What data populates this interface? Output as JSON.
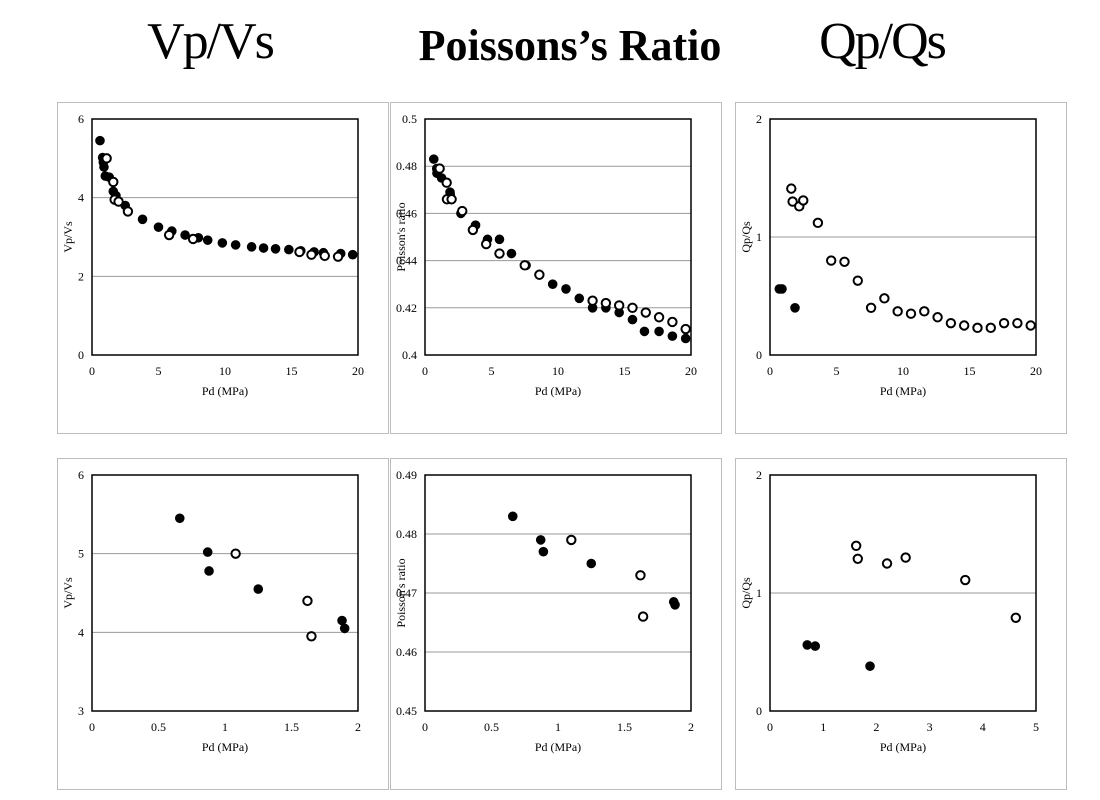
{
  "titles": {
    "vpvs": "Vp/Vs",
    "poisson": "Poissons’s Ratio",
    "qpqs": "Qp/Qs"
  },
  "chart_data": [
    {
      "type": "scatter",
      "title": "Vp/Vs",
      "xlabel": "Pd (MPa)",
      "ylabel": "Vp/Vs",
      "xlim": [
        0,
        20
      ],
      "ylim": [
        0,
        6
      ],
      "xticks": [
        0,
        5,
        10,
        15,
        20
      ],
      "yticks": [
        0,
        2,
        4,
        6
      ],
      "grid_y": [
        2,
        4
      ],
      "series": [
        {
          "name": "filled",
          "marker": "filled",
          "x": [
            0.6,
            0.8,
            0.85,
            0.9,
            1.0,
            1.3,
            1.6,
            1.8,
            2.5,
            3.8,
            5.0,
            6.0,
            7.0,
            8.0,
            8.7,
            9.8,
            10.8,
            12.0,
            12.9,
            13.8,
            14.8,
            15.7,
            16.7,
            17.4,
            18.7,
            19.6
          ],
          "y": [
            5.45,
            5.02,
            4.9,
            4.78,
            4.55,
            4.52,
            4.16,
            4.05,
            3.8,
            3.45,
            3.25,
            3.15,
            3.05,
            2.98,
            2.92,
            2.85,
            2.8,
            2.75,
            2.72,
            2.7,
            2.68,
            2.65,
            2.62,
            2.6,
            2.58,
            2.55
          ]
        },
        {
          "name": "open",
          "marker": "open",
          "x": [
            1.1,
            1.6,
            1.7,
            2.0,
            2.7,
            5.8,
            7.6,
            15.6,
            16.5,
            17.5,
            18.5
          ],
          "y": [
            5.0,
            4.4,
            3.95,
            3.9,
            3.65,
            3.05,
            2.95,
            2.62,
            2.55,
            2.52,
            2.5
          ]
        }
      ]
    },
    {
      "type": "scatter",
      "title": "Poissons’s Ratio",
      "xlabel": "Pd (MPa)",
      "ylabel": "Poisson's ratio",
      "xlim": [
        0,
        20
      ],
      "ylim": [
        0.4,
        0.5
      ],
      "xticks": [
        0,
        5,
        10,
        15,
        20
      ],
      "yticks": [
        0.4,
        0.42,
        0.44,
        0.46,
        0.48,
        0.5
      ],
      "grid_y": [
        0.42,
        0.44,
        0.46,
        0.48
      ],
      "series": [
        {
          "name": "filled",
          "marker": "filled",
          "x": [
            0.66,
            0.88,
            0.9,
            1.25,
            1.88,
            1.9,
            2.7,
            3.8,
            4.7,
            5.6,
            6.5,
            7.6,
            8.6,
            9.6,
            10.6,
            11.6,
            12.6,
            13.6,
            14.6,
            15.6,
            16.5,
            17.6,
            18.6,
            19.6
          ],
          "y": [
            0.483,
            0.479,
            0.477,
            0.475,
            0.469,
            0.468,
            0.46,
            0.455,
            0.449,
            0.449,
            0.443,
            0.438,
            0.434,
            0.43,
            0.428,
            0.424,
            0.42,
            0.42,
            0.418,
            0.415,
            0.41,
            0.41,
            0.408,
            0.407
          ]
        },
        {
          "name": "open",
          "marker": "open",
          "x": [
            1.1,
            1.63,
            1.65,
            2.0,
            2.8,
            3.6,
            4.6,
            5.6,
            7.5,
            8.6,
            12.6,
            13.6,
            14.6,
            15.6,
            16.6,
            17.6,
            18.6,
            19.6
          ],
          "y": [
            0.479,
            0.473,
            0.466,
            0.466,
            0.461,
            0.453,
            0.447,
            0.443,
            0.438,
            0.434,
            0.423,
            0.422,
            0.421,
            0.42,
            0.418,
            0.416,
            0.414,
            0.411
          ]
        }
      ]
    },
    {
      "type": "scatter",
      "title": "Qp/Qs",
      "xlabel": "Pd (MPa)",
      "ylabel": "Qp/Qs",
      "xlim": [
        0,
        20
      ],
      "ylim": [
        0,
        2
      ],
      "xticks": [
        0,
        5,
        10,
        15,
        20
      ],
      "yticks": [
        0,
        1,
        2
      ],
      "grid_y": [
        1
      ],
      "series": [
        {
          "name": "filled",
          "marker": "filled",
          "x": [
            0.7,
            0.9,
            1.88
          ],
          "y": [
            0.56,
            0.56,
            0.4
          ]
        },
        {
          "name": "open",
          "marker": "open",
          "x": [
            1.6,
            1.7,
            2.2,
            2.5,
            3.6,
            4.6,
            5.6,
            6.6,
            7.6,
            8.6,
            9.6,
            10.6,
            11.6,
            12.6,
            13.6,
            14.6,
            15.6,
            16.6,
            17.6,
            18.6,
            19.6
          ],
          "y": [
            1.41,
            1.3,
            1.26,
            1.31,
            1.12,
            0.8,
            0.79,
            0.63,
            0.4,
            0.48,
            0.37,
            0.35,
            0.37,
            0.32,
            0.27,
            0.25,
            0.23,
            0.23,
            0.27,
            0.27,
            0.25
          ]
        }
      ]
    },
    {
      "type": "scatter",
      "title": "Vp/Vs",
      "xlabel": "Pd (MPa)",
      "ylabel": "Vp/Vs",
      "xlim": [
        0,
        2
      ],
      "ylim": [
        3,
        6
      ],
      "xticks": [
        0,
        0.5,
        1,
        1.5,
        2
      ],
      "yticks": [
        3,
        4,
        5,
        6
      ],
      "grid_y": [
        4,
        5
      ],
      "series": [
        {
          "name": "filled",
          "marker": "filled",
          "x": [
            0.66,
            0.87,
            0.88,
            1.25,
            1.88,
            1.9
          ],
          "y": [
            5.45,
            5.02,
            4.78,
            4.55,
            4.15,
            4.05
          ]
        },
        {
          "name": "open",
          "marker": "open",
          "x": [
            1.08,
            1.62,
            1.65
          ],
          "y": [
            5.0,
            4.4,
            3.95
          ]
        }
      ]
    },
    {
      "type": "scatter",
      "title": "Poissons’s Ratio",
      "xlabel": "Pd (MPa)",
      "ylabel": "Poisson's ratio",
      "xlim": [
        0,
        2
      ],
      "ylim": [
        0.45,
        0.49
      ],
      "xticks": [
        0,
        0.5,
        1,
        1.5,
        2
      ],
      "yticks": [
        0.45,
        0.46,
        0.47,
        0.48,
        0.49
      ],
      "grid_y": [
        0.46,
        0.47,
        0.48
      ],
      "series": [
        {
          "name": "filled",
          "marker": "filled",
          "x": [
            0.66,
            0.87,
            0.89,
            1.25,
            1.87,
            1.88
          ],
          "y": [
            0.483,
            0.479,
            0.477,
            0.475,
            0.4685,
            0.468
          ]
        },
        {
          "name": "open",
          "marker": "open",
          "x": [
            1.1,
            1.62,
            1.64
          ],
          "y": [
            0.479,
            0.473,
            0.466
          ]
        }
      ]
    },
    {
      "type": "scatter",
      "title": "Qp/Qs",
      "xlabel": "Pd (MPa)",
      "ylabel": "Qp/Qs",
      "xlim": [
        0,
        5
      ],
      "ylim": [
        0,
        2
      ],
      "xticks": [
        0,
        1,
        2,
        3,
        4,
        5
      ],
      "yticks": [
        0,
        1,
        2
      ],
      "grid_y": [
        1
      ],
      "series": [
        {
          "name": "filled",
          "marker": "filled",
          "x": [
            0.7,
            0.85,
            1.88
          ],
          "y": [
            0.56,
            0.55,
            0.38
          ]
        },
        {
          "name": "open",
          "marker": "open",
          "x": [
            1.62,
            1.65,
            2.2,
            2.55,
            3.67,
            4.62
          ],
          "y": [
            1.4,
            1.29,
            1.25,
            1.3,
            1.11,
            0.79
          ]
        }
      ]
    }
  ]
}
